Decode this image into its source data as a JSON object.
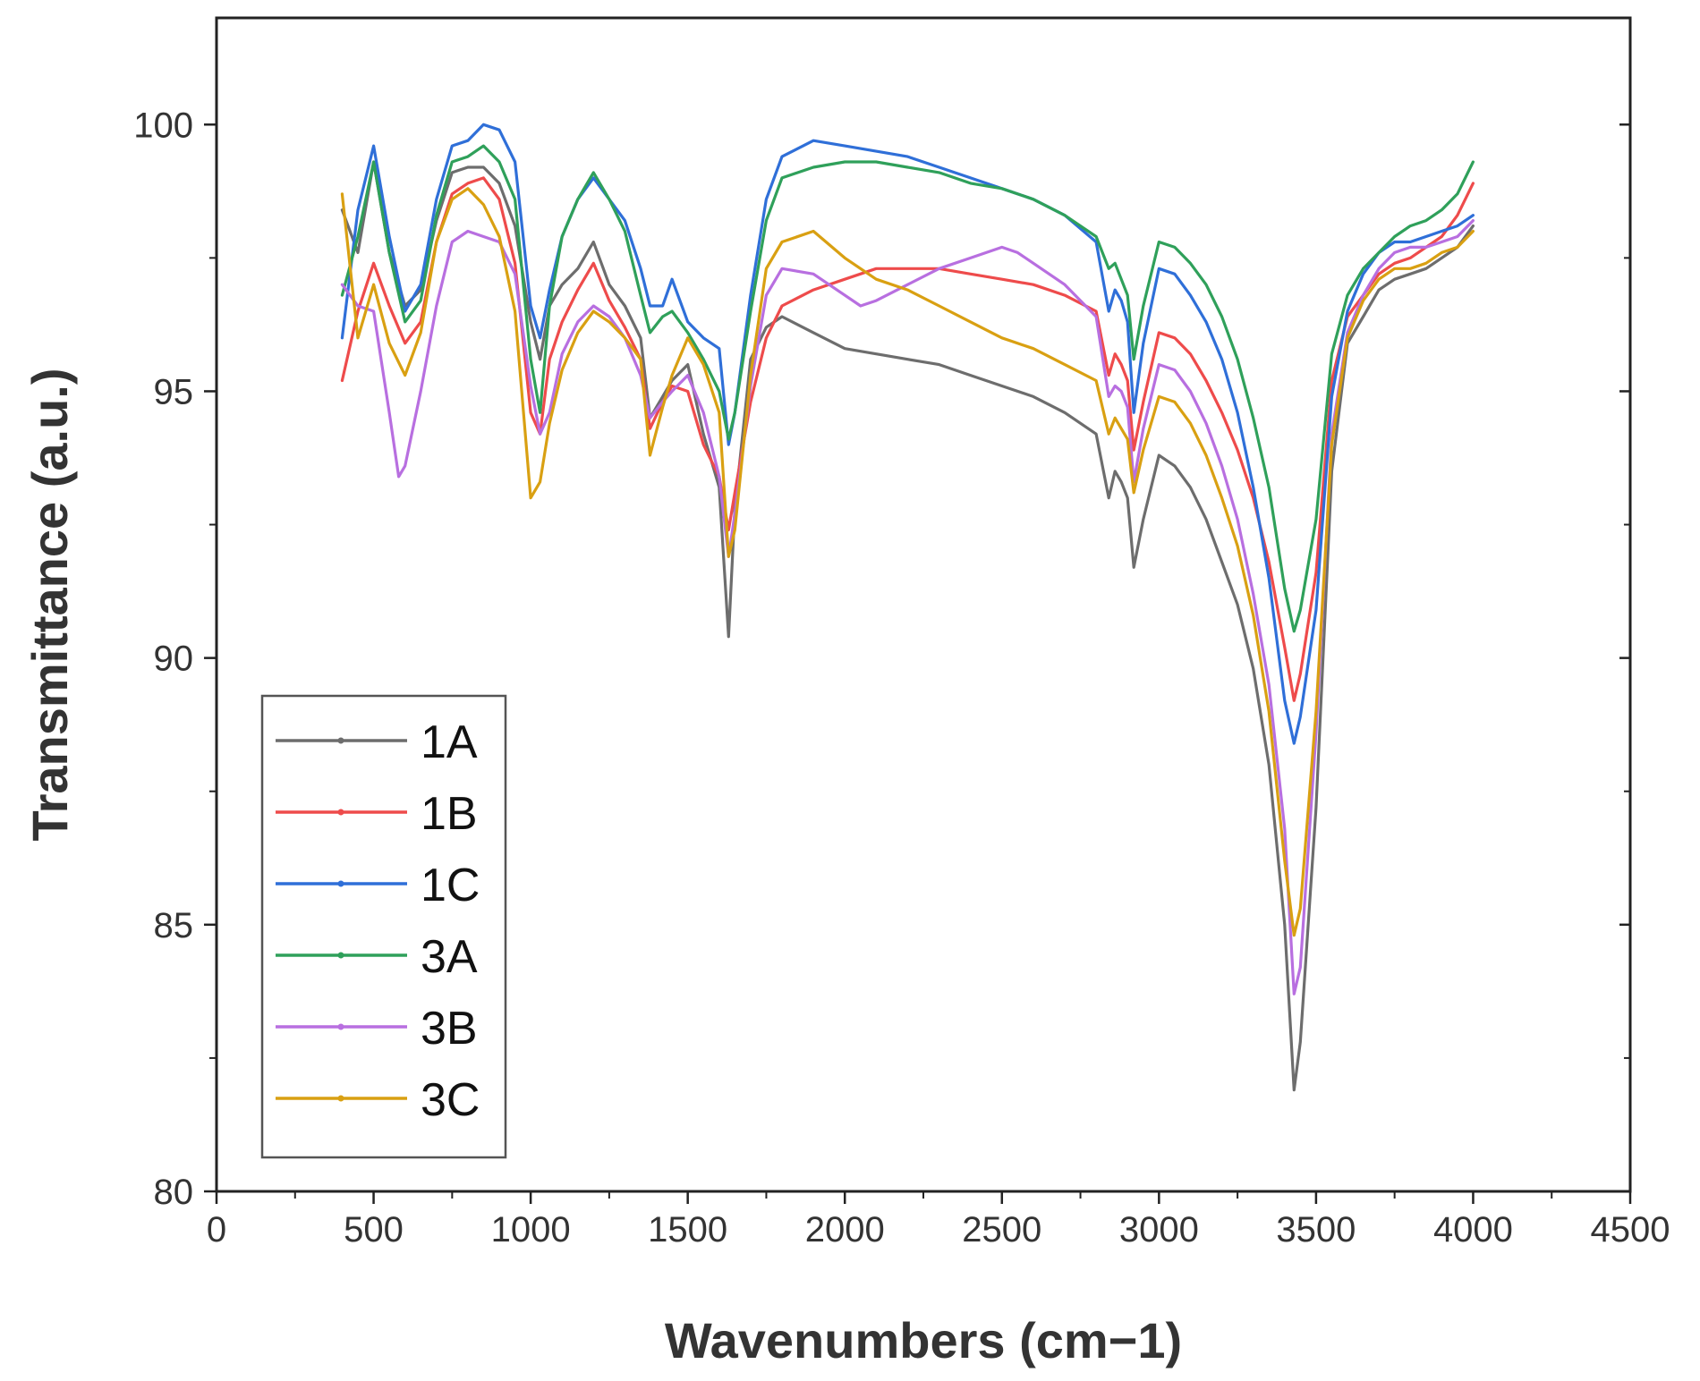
{
  "chart_data": {
    "type": "line",
    "title": "",
    "xlabel": "Wavenumbers (cm−1)",
    "ylabel": "Transmittance (a.u.)",
    "xlim": [
      0,
      4500
    ],
    "ylim": [
      80,
      102
    ],
    "xticks": [
      0,
      500,
      1000,
      1500,
      2000,
      2500,
      3000,
      3500,
      4000,
      4500
    ],
    "xtick_labels": [
      "0",
      "500",
      "1000",
      "1500",
      "2000",
      "2500",
      "3000",
      "3500",
      "4000",
      "4500"
    ],
    "yticks": [
      80,
      85,
      90,
      95,
      100
    ],
    "ytick_labels": [
      "80",
      "85",
      "90",
      "95",
      "100"
    ],
    "grid": false,
    "legend_position": "lower-left",
    "series": [
      {
        "name": "1A",
        "color": "#6d6d6d",
        "x": [
          400,
          450,
          500,
          550,
          600,
          650,
          700,
          750,
          800,
          850,
          900,
          950,
          1000,
          1030,
          1060,
          1100,
          1150,
          1200,
          1250,
          1300,
          1350,
          1380,
          1420,
          1450,
          1500,
          1550,
          1600,
          1630,
          1650,
          1700,
          1750,
          1800,
          1900,
          2000,
          2100,
          2200,
          2300,
          2400,
          2500,
          2600,
          2700,
          2800,
          2840,
          2860,
          2880,
          2900,
          2920,
          2950,
          3000,
          3050,
          3100,
          3150,
          3200,
          3250,
          3300,
          3350,
          3400,
          3430,
          3450,
          3500,
          3550,
          3600,
          3650,
          3700,
          3750,
          3800,
          3850,
          3900,
          3950,
          4000
        ],
        "values": [
          98.4,
          97.6,
          99.3,
          97.6,
          96.6,
          96.9,
          98.2,
          99.1,
          99.2,
          99.2,
          98.9,
          98.1,
          96.3,
          95.6,
          96.6,
          97.0,
          97.3,
          97.8,
          97.0,
          96.6,
          96.0,
          94.5,
          94.9,
          95.2,
          95.5,
          94.2,
          93.2,
          90.4,
          92.8,
          95.6,
          96.2,
          96.4,
          96.1,
          95.8,
          95.7,
          95.6,
          95.5,
          95.3,
          95.1,
          94.9,
          94.6,
          94.2,
          93.0,
          93.5,
          93.3,
          93.0,
          91.7,
          92.6,
          93.8,
          93.6,
          93.2,
          92.6,
          91.8,
          91.0,
          89.8,
          88.0,
          85.0,
          81.9,
          82.8,
          87.2,
          93.5,
          95.9,
          96.4,
          96.9,
          97.1,
          97.2,
          97.3,
          97.5,
          97.7,
          98.1
        ]
      },
      {
        "name": "1B",
        "color": "#ee4b4b",
        "x": [
          400,
          450,
          500,
          550,
          600,
          650,
          700,
          750,
          800,
          850,
          900,
          950,
          1000,
          1030,
          1060,
          1100,
          1150,
          1200,
          1250,
          1300,
          1350,
          1380,
          1420,
          1450,
          1500,
          1550,
          1600,
          1630,
          1650,
          1700,
          1750,
          1800,
          1900,
          2000,
          2100,
          2200,
          2300,
          2400,
          2500,
          2600,
          2700,
          2800,
          2840,
          2860,
          2880,
          2900,
          2920,
          2950,
          3000,
          3050,
          3100,
          3150,
          3200,
          3250,
          3300,
          3350,
          3400,
          3430,
          3450,
          3500,
          3550,
          3600,
          3650,
          3700,
          3750,
          3800,
          3850,
          3900,
          3950,
          4000
        ],
        "values": [
          95.2,
          96.5,
          97.4,
          96.6,
          95.9,
          96.3,
          97.8,
          98.7,
          98.9,
          99.0,
          98.6,
          97.4,
          94.6,
          94.2,
          95.6,
          96.3,
          96.9,
          97.4,
          96.7,
          96.2,
          95.6,
          94.3,
          94.8,
          95.1,
          95.0,
          94.0,
          93.4,
          92.4,
          93.1,
          94.8,
          96.0,
          96.6,
          96.9,
          97.1,
          97.3,
          97.3,
          97.3,
          97.2,
          97.1,
          97.0,
          96.8,
          96.5,
          95.3,
          95.7,
          95.5,
          95.2,
          93.9,
          94.8,
          96.1,
          96.0,
          95.7,
          95.2,
          94.6,
          93.9,
          93.0,
          91.8,
          90.2,
          89.2,
          89.7,
          91.6,
          95.2,
          96.4,
          96.8,
          97.2,
          97.4,
          97.5,
          97.7,
          97.9,
          98.3,
          98.9
        ]
      },
      {
        "name": "1C",
        "color": "#2f6fd8",
        "x": [
          400,
          450,
          500,
          550,
          600,
          650,
          700,
          750,
          800,
          850,
          900,
          950,
          1000,
          1030,
          1060,
          1100,
          1150,
          1200,
          1250,
          1300,
          1350,
          1380,
          1420,
          1450,
          1500,
          1550,
          1600,
          1630,
          1650,
          1700,
          1750,
          1800,
          1900,
          2000,
          2100,
          2200,
          2300,
          2400,
          2500,
          2600,
          2700,
          2800,
          2840,
          2860,
          2880,
          2900,
          2920,
          2950,
          3000,
          3050,
          3100,
          3150,
          3200,
          3250,
          3300,
          3350,
          3400,
          3430,
          3450,
          3500,
          3550,
          3600,
          3650,
          3700,
          3750,
          3800,
          3850,
          3900,
          3950,
          4000
        ],
        "values": [
          96.0,
          98.4,
          99.6,
          97.9,
          96.5,
          97.0,
          98.6,
          99.6,
          99.7,
          100.0,
          99.9,
          99.3,
          96.6,
          96.0,
          96.9,
          97.9,
          98.6,
          99.0,
          98.6,
          98.2,
          97.3,
          96.6,
          96.6,
          97.1,
          96.3,
          96.0,
          95.8,
          94.0,
          94.6,
          96.8,
          98.6,
          99.4,
          99.7,
          99.6,
          99.5,
          99.4,
          99.2,
          99.0,
          98.8,
          98.6,
          98.3,
          97.8,
          96.5,
          96.9,
          96.7,
          96.3,
          94.6,
          95.9,
          97.3,
          97.2,
          96.8,
          96.3,
          95.6,
          94.6,
          93.2,
          91.5,
          89.2,
          88.4,
          88.9,
          90.9,
          94.9,
          96.5,
          97.2,
          97.6,
          97.8,
          97.8,
          97.9,
          98.0,
          98.1,
          98.3
        ]
      },
      {
        "name": "3A",
        "color": "#2fa05a",
        "x": [
          400,
          450,
          500,
          550,
          600,
          650,
          700,
          750,
          800,
          850,
          900,
          950,
          1000,
          1030,
          1060,
          1100,
          1150,
          1200,
          1250,
          1300,
          1350,
          1380,
          1420,
          1450,
          1500,
          1550,
          1600,
          1630,
          1650,
          1700,
          1750,
          1800,
          1900,
          2000,
          2100,
          2200,
          2300,
          2400,
          2500,
          2600,
          2700,
          2800,
          2840,
          2860,
          2880,
          2900,
          2920,
          2950,
          3000,
          3050,
          3100,
          3150,
          3200,
          3250,
          3300,
          3350,
          3400,
          3430,
          3450,
          3500,
          3550,
          3600,
          3650,
          3700,
          3750,
          3800,
          3850,
          3900,
          3950,
          4000
        ],
        "values": [
          96.8,
          97.9,
          99.3,
          97.6,
          96.3,
          96.7,
          98.3,
          99.3,
          99.4,
          99.6,
          99.3,
          98.6,
          95.6,
          94.6,
          96.6,
          97.9,
          98.6,
          99.1,
          98.6,
          98.0,
          96.8,
          96.1,
          96.4,
          96.5,
          96.1,
          95.6,
          95.0,
          94.1,
          94.6,
          96.5,
          98.2,
          99.0,
          99.2,
          99.3,
          99.3,
          99.2,
          99.1,
          98.9,
          98.8,
          98.6,
          98.3,
          97.9,
          97.3,
          97.4,
          97.1,
          96.8,
          95.6,
          96.6,
          97.8,
          97.7,
          97.4,
          97.0,
          96.4,
          95.6,
          94.5,
          93.2,
          91.3,
          90.5,
          90.9,
          92.6,
          95.7,
          96.8,
          97.3,
          97.6,
          97.9,
          98.1,
          98.2,
          98.4,
          98.7,
          99.3
        ]
      },
      {
        "name": "3B",
        "color": "#b86fe0",
        "x": [
          400,
          450,
          500,
          550,
          580,
          600,
          650,
          700,
          750,
          800,
          850,
          900,
          950,
          1000,
          1030,
          1060,
          1100,
          1150,
          1200,
          1250,
          1300,
          1350,
          1380,
          1420,
          1450,
          1500,
          1550,
          1600,
          1630,
          1650,
          1700,
          1750,
          1800,
          1900,
          2000,
          2050,
          2100,
          2200,
          2300,
          2400,
          2500,
          2550,
          2600,
          2700,
          2800,
          2840,
          2860,
          2880,
          2900,
          2920,
          2950,
          3000,
          3050,
          3100,
          3150,
          3200,
          3250,
          3300,
          3350,
          3400,
          3430,
          3450,
          3500,
          3550,
          3600,
          3650,
          3700,
          3750,
          3800,
          3850,
          3900,
          3950,
          4000
        ],
        "values": [
          97.0,
          96.6,
          96.5,
          94.6,
          93.4,
          93.6,
          95.0,
          96.6,
          97.8,
          98.0,
          97.9,
          97.8,
          97.2,
          95.1,
          94.2,
          94.6,
          95.7,
          96.3,
          96.6,
          96.4,
          96.0,
          95.3,
          94.5,
          94.8,
          95.0,
          95.3,
          94.6,
          93.4,
          91.9,
          92.7,
          95.1,
          96.8,
          97.3,
          97.2,
          96.8,
          96.6,
          96.7,
          97.0,
          97.3,
          97.5,
          97.7,
          97.6,
          97.4,
          97.0,
          96.4,
          94.9,
          95.1,
          95.0,
          94.7,
          93.3,
          94.3,
          95.5,
          95.4,
          95.0,
          94.4,
          93.6,
          92.6,
          91.2,
          89.5,
          86.8,
          83.7,
          84.2,
          88.6,
          94.2,
          96.1,
          96.8,
          97.3,
          97.6,
          97.7,
          97.7,
          97.8,
          97.9,
          98.2
        ]
      },
      {
        "name": "3C",
        "color": "#d9a012",
        "x": [
          400,
          450,
          500,
          550,
          600,
          650,
          700,
          750,
          800,
          850,
          900,
          950,
          1000,
          1030,
          1060,
          1100,
          1150,
          1200,
          1250,
          1300,
          1350,
          1380,
          1420,
          1450,
          1500,
          1550,
          1600,
          1630,
          1650,
          1700,
          1750,
          1800,
          1900,
          2000,
          2100,
          2200,
          2300,
          2400,
          2500,
          2600,
          2700,
          2800,
          2840,
          2860,
          2880,
          2900,
          2920,
          2950,
          3000,
          3050,
          3100,
          3150,
          3200,
          3250,
          3300,
          3350,
          3400,
          3430,
          3450,
          3500,
          3550,
          3600,
          3650,
          3700,
          3750,
          3800,
          3850,
          3900,
          3950,
          4000
        ],
        "values": [
          98.7,
          96.0,
          97.0,
          95.9,
          95.3,
          96.1,
          97.8,
          98.6,
          98.8,
          98.5,
          97.9,
          96.5,
          93.0,
          93.3,
          94.4,
          95.4,
          96.1,
          96.5,
          96.3,
          96.0,
          95.6,
          93.8,
          94.7,
          95.3,
          96.0,
          95.5,
          94.6,
          91.9,
          92.4,
          95.3,
          97.3,
          97.8,
          98.0,
          97.5,
          97.1,
          96.9,
          96.6,
          96.3,
          96.0,
          95.8,
          95.5,
          95.2,
          94.2,
          94.5,
          94.3,
          94.1,
          93.1,
          93.9,
          94.9,
          94.8,
          94.4,
          93.8,
          93.0,
          92.1,
          90.8,
          89.0,
          86.2,
          84.8,
          85.3,
          89.0,
          94.0,
          96.0,
          96.7,
          97.1,
          97.3,
          97.3,
          97.4,
          97.6,
          97.7,
          98.0
        ]
      }
    ]
  }
}
